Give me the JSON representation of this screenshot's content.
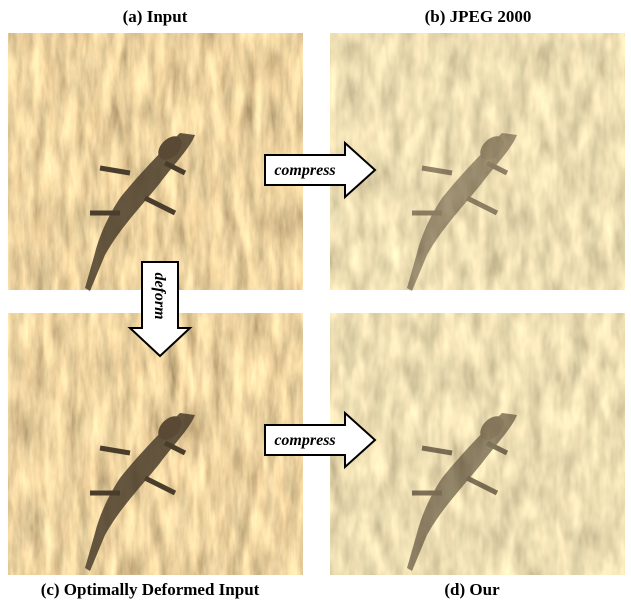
{
  "panels": [
    {
      "caption": "(a) Input"
    },
    {
      "caption": "(b) JPEG 2000"
    },
    {
      "caption": "(c) Optimally Deformed Input"
    },
    {
      "caption": "(d) Our"
    }
  ],
  "arrows": [
    {
      "label": "compress"
    },
    {
      "label": "deform"
    },
    {
      "label": "compress"
    }
  ]
}
